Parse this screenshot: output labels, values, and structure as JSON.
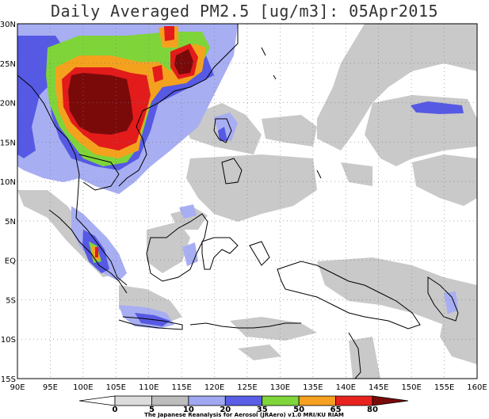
{
  "title": "Daily Averaged PM2.5 [ug/m3]: 05Apr2015",
  "map": {
    "lon_min": 90,
    "lon_max": 160,
    "lat_min": -15,
    "lat_max": 30,
    "x_ticks": [
      "90E",
      "95E",
      "100E",
      "105E",
      "110E",
      "115E",
      "120E",
      "125E",
      "130E",
      "135E",
      "140E",
      "145E",
      "150E",
      "155E",
      "160E"
    ],
    "y_ticks": [
      "30N",
      "25N",
      "20N",
      "15N",
      "10N",
      "5N",
      "EQ",
      "5S",
      "10S",
      "15S"
    ],
    "grid": "dotted"
  },
  "legend": {
    "levels": [
      "0",
      "5",
      "10",
      "20",
      "35",
      "50",
      "65",
      "80"
    ],
    "colors": [
      "#ffffff",
      "#dcdcdc",
      "#bdbdbd",
      "#9fa8f0",
      "#5a5ee6",
      "#7ed63a",
      "#f5a020",
      "#e8231e",
      "#7b0a0a"
    ],
    "credit": "The Japanese Reanalysis for Aerosol (JRAero) v1.0 MRI/KU RIAM"
  }
}
